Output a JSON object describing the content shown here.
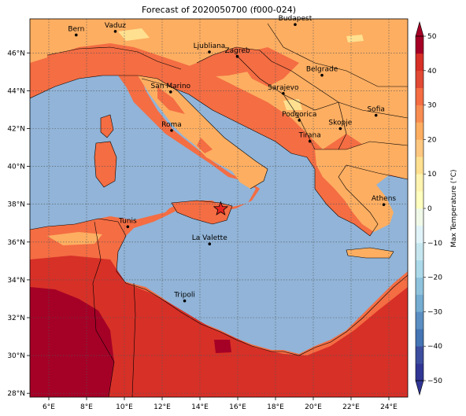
{
  "title": "Forecast of 2020050700 (f000-024)",
  "map": {
    "lon_range": [
      5.0,
      25.0
    ],
    "lat_range": [
      27.8,
      47.8
    ],
    "lon_ticks": [
      {
        "value": 6,
        "label": "6°E"
      },
      {
        "value": 8,
        "label": "8°E"
      },
      {
        "value": 10,
        "label": "10°E"
      },
      {
        "value": 12,
        "label": "12°E"
      },
      {
        "value": 14,
        "label": "14°E"
      },
      {
        "value": 16,
        "label": "16°E"
      },
      {
        "value": 18,
        "label": "18°E"
      },
      {
        "value": 20,
        "label": "20°E"
      },
      {
        "value": 22,
        "label": "22°E"
      },
      {
        "value": 24,
        "label": "24°E"
      }
    ],
    "lat_ticks": [
      {
        "value": 28,
        "label": "28°N"
      },
      {
        "value": 30,
        "label": "30°N"
      },
      {
        "value": 32,
        "label": "32°N"
      },
      {
        "value": 34,
        "label": "34°N"
      },
      {
        "value": 36,
        "label": "36°N"
      },
      {
        "value": 38,
        "label": "38°N"
      },
      {
        "value": 40,
        "label": "40°N"
      },
      {
        "value": 42,
        "label": "42°N"
      },
      {
        "value": 44,
        "label": "44°N"
      },
      {
        "value": 46,
        "label": "46°N"
      }
    ],
    "grid": true,
    "cities": [
      {
        "name": "Bern",
        "lon": 7.45,
        "lat": 46.95
      },
      {
        "name": "Vaduz",
        "lon": 9.52,
        "lat": 47.14
      },
      {
        "name": "Budapest",
        "lon": 19.04,
        "lat": 47.5
      },
      {
        "name": "Ljubliana",
        "lon": 14.5,
        "lat": 46.05
      },
      {
        "name": "Zagreb",
        "lon": 15.98,
        "lat": 45.81
      },
      {
        "name": "Belgrade",
        "lon": 20.46,
        "lat": 44.82
      },
      {
        "name": "San Marino",
        "lon": 12.45,
        "lat": 43.94
      },
      {
        "name": "Sarajevo",
        "lon": 18.41,
        "lat": 43.86
      },
      {
        "name": "Sofia",
        "lon": 23.32,
        "lat": 42.7
      },
      {
        "name": "Roma",
        "lon": 12.5,
        "lat": 41.9
      },
      {
        "name": "Podgorica",
        "lon": 19.26,
        "lat": 42.44
      },
      {
        "name": "Skopje",
        "lon": 21.43,
        "lat": 42.0
      },
      {
        "name": "Tirana",
        "lon": 19.82,
        "lat": 41.33
      },
      {
        "name": "Athens",
        "lon": 23.73,
        "lat": 37.98
      },
      {
        "name": "Tunis",
        "lon": 10.18,
        "lat": 36.81
      },
      {
        "name": "La Valette",
        "lon": 14.51,
        "lat": 35.9
      },
      {
        "name": "Tripoli",
        "lon": 13.19,
        "lat": 32.89
      }
    ],
    "marker": {
      "symbol": "star",
      "lon": 15.1,
      "lat": 37.75,
      "color": "#e8231f"
    }
  },
  "colorbar": {
    "title": "Max Temperature (°C)",
    "levels": [
      -50,
      -45,
      -40,
      -35,
      -30,
      -25,
      -20,
      -15,
      -10,
      -5,
      0,
      5,
      10,
      15,
      20,
      25,
      30,
      35,
      40,
      45,
      50
    ],
    "colors": [
      "#313695",
      "#3d4e9f",
      "#4575b4",
      "#5b8fc3",
      "#74add1",
      "#8fc3dd",
      "#abd9e9",
      "#c6e6ef",
      "#e0f3f8",
      "#f0f9e8",
      "#ffffbf",
      "#fff3b0",
      "#fee090",
      "#fdc780",
      "#fdae61",
      "#f88d52",
      "#f46d43",
      "#e14a34",
      "#d73027",
      "#a50026"
    ],
    "tick_labels": [
      "−50",
      "−40",
      "−30",
      "−20",
      "−10",
      "0",
      "10",
      "20",
      "30",
      "40",
      "50"
    ],
    "extend": "both"
  },
  "colors": {
    "sea": "#91b4d8",
    "land_mild": "#fdae61",
    "land_warm": "#f46d43",
    "land_hot": "#d73027",
    "land_very_hot": "#a50026",
    "land_cool": "#fee090"
  }
}
